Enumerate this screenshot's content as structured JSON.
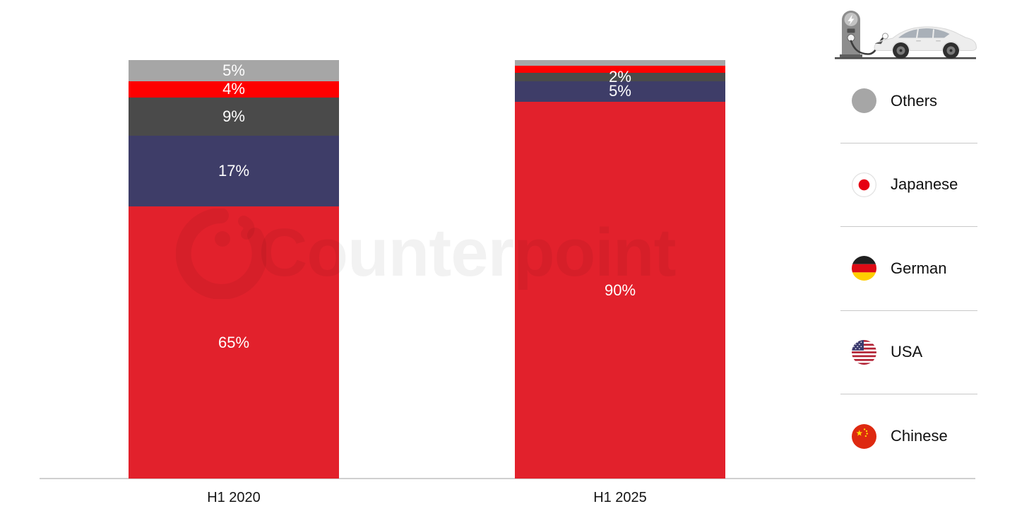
{
  "watermark": {
    "text": "Counterpoint"
  },
  "colors": {
    "chinese": "#e2212c",
    "usa": "#3e3d68",
    "german": "#4a4a4a",
    "japanese": "#fe0000",
    "others": "#a6a6a6",
    "axis": "#cfcfcf",
    "value_label_text": "#ffffff"
  },
  "chart_data": {
    "type": "bar",
    "subtype": "stacked-100-percent",
    "categories": [
      "H1 2020",
      "H1 2025"
    ],
    "stack_order_bottom_to_top": [
      "Chinese",
      "USA",
      "German",
      "Japanese",
      "Others"
    ],
    "series": [
      {
        "name": "Chinese",
        "color_key": "chinese",
        "values": [
          65,
          90
        ],
        "labels": [
          "65%",
          "90%"
        ]
      },
      {
        "name": "USA",
        "color_key": "usa",
        "values": [
          17,
          5
        ],
        "labels": [
          "17%",
          "5%"
        ]
      },
      {
        "name": "German",
        "color_key": "german",
        "values": [
          9,
          2
        ],
        "labels": [
          "9%",
          "2%"
        ]
      },
      {
        "name": "Japanese",
        "color_key": "japanese",
        "values": [
          4,
          1.7
        ],
        "labels": [
          "4%",
          ""
        ]
      },
      {
        "name": "Others",
        "color_key": "others",
        "values": [
          5,
          1.3
        ],
        "labels": [
          "5%",
          ""
        ]
      }
    ],
    "ylim": [
      0,
      100
    ],
    "grid": false,
    "legend_position": "right"
  },
  "legend": {
    "items": [
      {
        "label": "Others",
        "icon": "gray-circle"
      },
      {
        "label": "Japanese",
        "icon": "japan-flag"
      },
      {
        "label": "German",
        "icon": "germany-flag"
      },
      {
        "label": "USA",
        "icon": "usa-flag"
      },
      {
        "label": "Chinese",
        "icon": "china-flag"
      }
    ]
  }
}
